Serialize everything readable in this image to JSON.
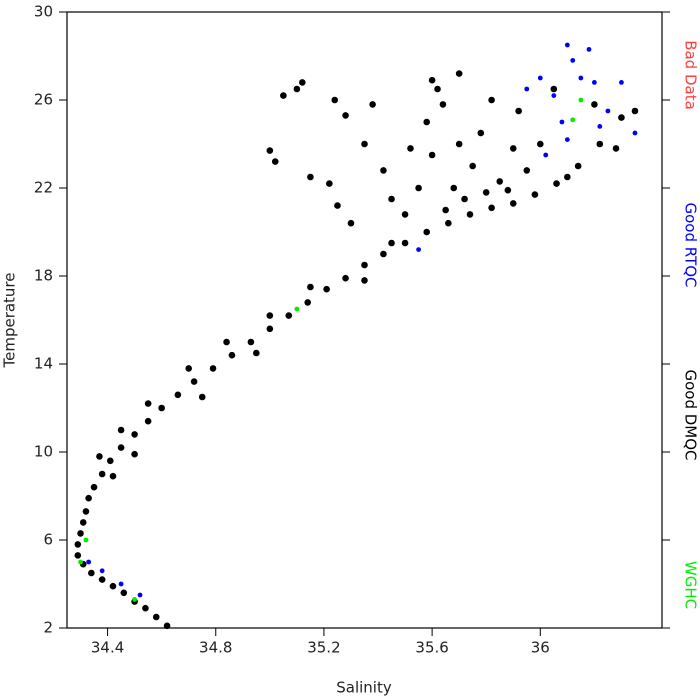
{
  "chart_data": {
    "type": "scatter",
    "x_label": "Salinity",
    "y_label": "Temperature",
    "xlim": [
      34.25,
      36.45
    ],
    "ylim": [
      2,
      30
    ],
    "xticks": [
      34.4,
      34.8,
      35.2,
      35.6,
      36.0
    ],
    "yticks": [
      2,
      6,
      10,
      14,
      18,
      22,
      26,
      30
    ],
    "legend": "right",
    "series": [
      {
        "name": "Bad Data",
        "color": "#ff4040",
        "x": [],
        "values": []
      },
      {
        "name": "Good RTQC",
        "color": "#0000ff",
        "x": [
          36.1,
          36.12,
          36.15,
          36.05,
          36.08,
          36.2,
          36.25,
          36.0,
          35.95,
          36.18,
          36.1,
          36.3,
          36.22,
          36.02,
          34.33,
          34.38,
          34.45,
          34.52,
          35.55,
          36.35
        ],
        "values": [
          28.5,
          27.8,
          27.0,
          26.2,
          25.0,
          26.8,
          25.5,
          27.0,
          26.5,
          28.3,
          24.2,
          26.8,
          24.8,
          23.5,
          5.0,
          4.6,
          4.0,
          3.5,
          19.2,
          24.5
        ]
      },
      {
        "name": "Good DMQC",
        "color": "#000000",
        "x": [
          34.62,
          34.58,
          34.54,
          34.5,
          34.46,
          34.42,
          34.38,
          34.34,
          34.31,
          34.29,
          34.29,
          34.3,
          34.31,
          34.32,
          34.33,
          34.35,
          34.38,
          34.41,
          34.45,
          34.5,
          34.55,
          34.6,
          34.66,
          34.72,
          34.79,
          34.86,
          34.93,
          35.0,
          35.07,
          35.14,
          35.21,
          35.28,
          35.35,
          35.42,
          35.5,
          35.58,
          35.66,
          35.74,
          35.82,
          35.9,
          35.98,
          36.06,
          36.14,
          36.22,
          36.3,
          34.37,
          34.45,
          34.55,
          34.7,
          34.84,
          35.0,
          34.95,
          34.75,
          34.5,
          34.42,
          35.15,
          35.35,
          35.45,
          35.5,
          35.55,
          35.6,
          35.58,
          35.62,
          35.7,
          35.72,
          35.75,
          35.78,
          35.82,
          35.85,
          35.9,
          35.92,
          35.95,
          36.0,
          36.05,
          36.1,
          36.2,
          36.28,
          36.35,
          35.68,
          35.65,
          35.8,
          35.88,
          35.7,
          35.64,
          35.52,
          35.45,
          35.42,
          35.35,
          35.38,
          35.6,
          35.1,
          35.12,
          35.05,
          35.0,
          35.02,
          35.15,
          35.22,
          35.25,
          35.3,
          35.28,
          35.24
        ],
        "values": [
          2.1,
          2.5,
          2.9,
          3.2,
          3.6,
          3.9,
          4.2,
          4.5,
          4.9,
          5.3,
          5.8,
          6.3,
          6.8,
          7.3,
          7.9,
          8.4,
          9.0,
          9.6,
          10.2,
          10.8,
          11.4,
          12.0,
          12.6,
          13.2,
          13.8,
          14.4,
          15.0,
          15.6,
          16.2,
          16.8,
          17.4,
          17.9,
          18.5,
          19.0,
          19.5,
          20.0,
          20.4,
          20.8,
          21.1,
          21.3,
          21.7,
          22.2,
          23.0,
          24.0,
          25.2,
          9.8,
          11.0,
          12.2,
          13.8,
          15.0,
          16.2,
          14.5,
          12.5,
          9.9,
          8.9,
          17.5,
          17.8,
          19.5,
          20.8,
          22.0,
          23.5,
          25.0,
          26.5,
          27.2,
          21.5,
          23.0,
          24.5,
          26.0,
          22.3,
          23.8,
          25.5,
          22.8,
          24.0,
          26.5,
          22.5,
          25.8,
          23.8,
          25.5,
          22.0,
          21.0,
          21.8,
          21.9,
          24.0,
          25.8,
          23.8,
          21.5,
          22.8,
          24.0,
          25.8,
          26.9,
          26.5,
          26.8,
          26.2,
          23.7,
          23.2,
          22.5,
          22.2,
          21.2,
          20.4,
          25.3,
          26.0
        ]
      },
      {
        "name": "WGHC",
        "color": "#00ee00",
        "x": [
          36.15,
          34.32,
          34.3,
          34.5,
          36.12,
          35.1
        ],
        "values": [
          26.0,
          6.0,
          5.0,
          3.3,
          25.1,
          16.5
        ]
      }
    ]
  }
}
